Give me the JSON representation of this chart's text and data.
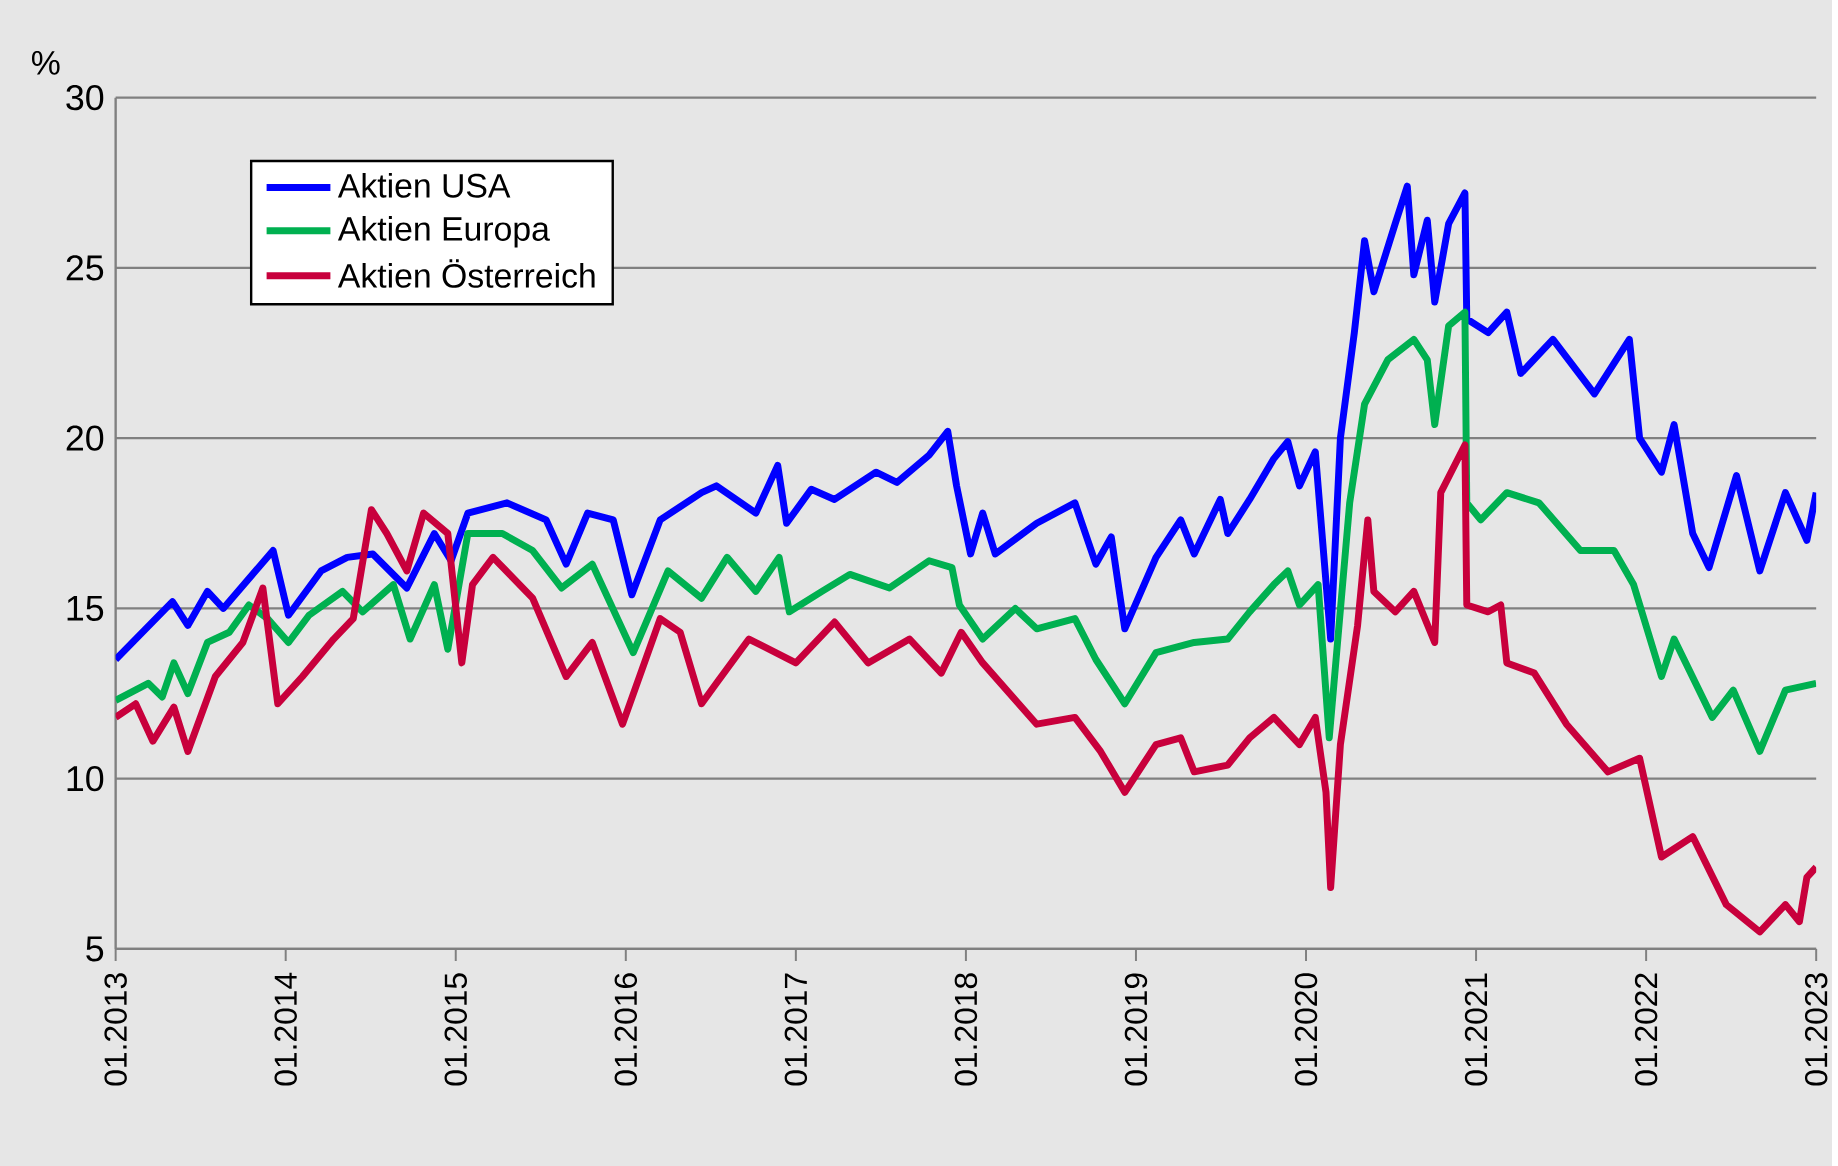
{
  "chart_data": {
    "type": "line",
    "ylabel": "%",
    "xlim": [
      "2013-01",
      "2023-01"
    ],
    "ylim": [
      5,
      30
    ],
    "yticks": [
      5,
      10,
      15,
      20,
      25,
      30
    ],
    "xticks": [
      {
        "value": "2013-01",
        "label": "01.2013"
      },
      {
        "value": "2014-01",
        "label": "01.2014"
      },
      {
        "value": "2015-01",
        "label": "01.2015"
      },
      {
        "value": "2016-01",
        "label": "01.2016"
      },
      {
        "value": "2017-01",
        "label": "01.2017"
      },
      {
        "value": "2018-01",
        "label": "01.2018"
      },
      {
        "value": "2019-01",
        "label": "01.2019"
      },
      {
        "value": "2020-01",
        "label": "01.2020"
      },
      {
        "value": "2021-01",
        "label": "01.2021"
      },
      {
        "value": "2022-01",
        "label": "01.2022"
      },
      {
        "value": "2023-01",
        "label": "01.2023"
      }
    ],
    "grid": "y",
    "legend": "top left",
    "marker": "none",
    "line_style": "solid",
    "series": [
      {
        "name": "Aktien USA",
        "color": "#0000ff",
        "x": [
          "2013-01-01",
          "2013-05-03",
          "2013-06-05",
          "2013-07-17",
          "2013-08-20",
          "2013-12-05",
          "2014-01-07",
          "2014-03-18",
          "2014-05-13",
          "2014-07-07",
          "2014-09-18",
          "2014-11-16",
          "2014-12-22",
          "2015-01-27",
          "2015-04-21",
          "2015-07-14",
          "2015-08-26",
          "2015-10-11",
          "2015-12-05",
          "2016-01-14",
          "2016-03-15",
          "2016-06-12",
          "2016-07-14",
          "2016-10-07",
          "2016-11-23",
          "2016-12-12",
          "2017-02-03",
          "2017-03-25",
          "2017-06-22",
          "2017-08-06",
          "2017-10-14",
          "2017-11-23",
          "2017-12-12",
          "2018-01-11",
          "2018-02-06",
          "2018-03-05",
          "2018-06-02",
          "2018-08-23",
          "2018-10-07",
          "2018-11-09",
          "2018-12-08",
          "2019-02-13",
          "2019-04-07",
          "2019-05-06",
          "2019-07-01",
          "2019-07-17",
          "2019-09-02",
          "2019-10-24",
          "2019-11-23",
          "2019-12-18",
          "2020-01-21",
          "2020-02-23",
          "2020-03-15",
          "2020-04-14",
          "2020-05-06",
          "2020-05-26",
          "2020-07-11",
          "2020-08-06",
          "2020-08-20",
          "2020-09-18",
          "2020-10-04",
          "2020-11-03",
          "2020-12-08",
          "2020-12-12",
          "2021-01-27",
          "2021-03-08",
          "2021-04-07",
          "2021-06-15",
          "2021-09-12",
          "2021-11-26",
          "2021-12-18",
          "2022-02-03",
          "2022-03-02",
          "2022-04-11",
          "2022-05-16",
          "2022-07-14",
          "2022-09-02",
          "2022-10-27",
          "2022-12-12",
          "2023-01-01"
        ],
        "values": [
          13.5,
          15.2,
          14.5,
          15.5,
          15.0,
          16.7,
          14.8,
          16.1,
          16.5,
          16.6,
          15.6,
          17.2,
          16.4,
          17.8,
          18.1,
          17.6,
          16.3,
          17.8,
          17.6,
          15.4,
          17.6,
          18.4,
          18.6,
          17.8,
          19.2,
          17.5,
          18.5,
          18.2,
          19.0,
          18.7,
          19.5,
          20.2,
          18.6,
          16.6,
          17.8,
          16.6,
          17.5,
          18.1,
          16.3,
          17.1,
          14.4,
          16.5,
          17.6,
          16.6,
          18.2,
          17.2,
          18.2,
          19.4,
          19.9,
          18.6,
          19.6,
          14.1,
          20.0,
          23.1,
          25.8,
          24.3,
          26.3,
          27.4,
          24.8,
          26.4,
          24.0,
          26.3,
          27.2,
          23.5,
          23.1,
          23.7,
          21.9,
          22.9,
          21.3,
          22.9,
          20.0,
          19.0,
          20.4,
          17.2,
          16.2,
          18.9,
          16.1,
          18.4,
          17.0,
          18.4
        ]
      },
      {
        "name": "Aktien Europa",
        "color": "#00b050",
        "x": [
          "2013-01-01",
          "2013-03-12",
          "2013-04-11",
          "2013-05-06",
          "2013-06-05",
          "2013-07-17",
          "2013-09-02",
          "2013-10-14",
          "2013-11-23",
          "2014-01-07",
          "2014-02-20",
          "2014-05-03",
          "2014-06-15",
          "2014-08-20",
          "2014-09-25",
          "2014-11-16",
          "2014-12-15",
          "2015-01-27",
          "2015-04-11",
          "2015-06-15",
          "2015-08-16",
          "2015-10-21",
          "2016-01-17",
          "2016-04-01",
          "2016-06-12",
          "2016-08-06",
          "2016-10-07",
          "2016-11-26",
          "2016-12-18",
          "2017-02-26",
          "2017-04-27",
          "2017-07-21",
          "2017-10-14",
          "2017-12-02",
          "2017-12-18",
          "2018-02-06",
          "2018-04-17",
          "2018-06-02",
          "2018-08-23",
          "2018-10-07",
          "2018-12-08",
          "2019-02-13",
          "2019-05-06",
          "2019-07-17",
          "2019-09-02",
          "2019-10-24",
          "2019-11-23",
          "2019-12-18",
          "2020-01-27",
          "2020-02-20",
          "2020-04-04",
          "2020-05-06",
          "2020-06-25",
          "2020-08-20",
          "2020-09-18",
          "2020-10-04",
          "2020-11-03",
          "2020-12-08",
          "2020-12-12",
          "2021-01-11",
          "2021-03-08",
          "2021-05-16",
          "2021-08-13",
          "2021-10-24",
          "2021-12-05",
          "2022-02-03",
          "2022-03-02",
          "2022-05-23",
          "2022-07-07",
          "2022-09-02",
          "2022-10-27",
          "2023-01-01"
        ],
        "values": [
          12.3,
          12.8,
          12.4,
          13.4,
          12.5,
          14.0,
          14.3,
          15.1,
          14.7,
          14.0,
          14.8,
          15.5,
          14.9,
          15.7,
          14.1,
          15.7,
          13.8,
          17.2,
          17.2,
          16.7,
          15.6,
          16.3,
          13.7,
          16.1,
          15.3,
          16.5,
          15.5,
          16.5,
          14.9,
          15.5,
          16.0,
          15.6,
          16.4,
          16.2,
          15.1,
          14.1,
          15.0,
          14.4,
          14.7,
          13.5,
          12.2,
          13.7,
          14.0,
          14.1,
          14.9,
          15.7,
          16.1,
          15.1,
          15.7,
          11.2,
          18.1,
          21.0,
          22.3,
          22.9,
          22.3,
          20.4,
          23.3,
          23.7,
          18.1,
          17.6,
          18.4,
          18.1,
          16.7,
          16.7,
          15.7,
          13.0,
          14.1,
          11.8,
          12.6,
          10.8,
          12.6,
          12.8
        ]
      },
      {
        "name": "Aktien Österreich",
        "color": "#c8003c",
        "x": [
          "2013-01-01",
          "2013-02-13",
          "2013-03-22",
          "2013-05-06",
          "2013-06-05",
          "2013-08-03",
          "2013-10-01",
          "2013-11-13",
          "2013-12-15",
          "2014-02-06",
          "2014-04-14",
          "2014-05-26",
          "2014-07-04",
          "2014-08-06",
          "2014-09-18",
          "2014-10-24",
          "2014-12-15",
          "2015-01-14",
          "2015-02-06",
          "2015-03-22",
          "2015-06-15",
          "2015-08-26",
          "2015-10-21",
          "2015-12-25",
          "2016-03-15",
          "2016-04-27",
          "2016-06-12",
          "2016-07-14",
          "2016-09-22",
          "2017-01-01",
          "2017-03-25",
          "2017-06-05",
          "2017-09-02",
          "2017-11-09",
          "2017-12-22",
          "2018-02-06",
          "2018-06-02",
          "2018-08-23",
          "2018-10-17",
          "2018-12-08",
          "2019-02-13",
          "2019-04-07",
          "2019-05-06",
          "2019-07-17",
          "2019-09-02",
          "2019-10-24",
          "2019-12-18",
          "2020-01-21",
          "2020-02-13",
          "2020-02-23",
          "2020-03-15",
          "2020-04-21",
          "2020-05-13",
          "2020-05-26",
          "2020-07-11",
          "2020-08-20",
          "2020-10-04",
          "2020-10-17",
          "2020-12-08",
          "2020-12-12",
          "2021-01-27",
          "2021-02-23",
          "2021-03-08",
          "2021-05-06",
          "2021-07-14",
          "2021-10-11",
          "2021-12-18",
          "2022-02-03",
          "2022-04-11",
          "2022-06-22",
          "2022-09-02",
          "2022-10-27",
          "2022-11-26",
          "2022-12-12",
          "2023-01-01"
        ],
        "values": [
          11.8,
          12.2,
          11.1,
          12.1,
          10.8,
          13.0,
          14.0,
          15.6,
          12.2,
          13.0,
          14.1,
          14.7,
          17.9,
          17.2,
          16.1,
          17.8,
          17.2,
          13.4,
          15.7,
          16.5,
          15.3,
          13.0,
          14.0,
          11.6,
          14.7,
          14.3,
          12.2,
          12.8,
          14.1,
          13.4,
          14.6,
          13.4,
          14.1,
          13.1,
          14.3,
          13.4,
          11.6,
          11.8,
          10.8,
          9.6,
          11.0,
          11.2,
          10.2,
          10.4,
          11.2,
          11.8,
          11.0,
          11.8,
          9.6,
          6.8,
          11.0,
          14.5,
          17.6,
          15.5,
          14.9,
          15.5,
          14.0,
          18.4,
          19.8,
          15.1,
          14.9,
          15.1,
          13.4,
          13.1,
          11.6,
          10.2,
          10.6,
          7.7,
          8.3,
          6.3,
          5.5,
          6.3,
          5.8,
          7.1,
          7.4
        ]
      }
    ]
  }
}
